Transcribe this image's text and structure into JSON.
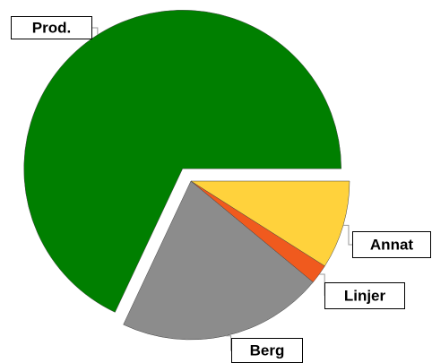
{
  "chart_data": {
    "type": "pie",
    "categories": [
      "Prod.",
      "Berg",
      "Linjer",
      "Annat"
    ],
    "values": [
      68,
      21,
      2,
      9
    ],
    "colors": [
      "#007f00",
      "#8c8c8c",
      "#f05a1e",
      "#ffd23c"
    ]
  }
}
